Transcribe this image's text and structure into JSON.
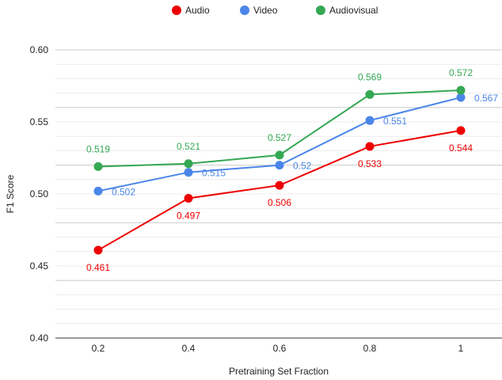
{
  "chart_data": {
    "type": "line",
    "title": "",
    "xlabel": "Pretraining Set Fraction",
    "ylabel": "F1 Score",
    "categories": [
      "0.2",
      "0.4",
      "0.6",
      "0.8",
      "1"
    ],
    "ylim": [
      0.4,
      0.6
    ],
    "yticks": [
      "0.40",
      "0.45",
      "0.50",
      "0.55",
      "0.60"
    ],
    "grid": true,
    "legend_position": "top-center",
    "series": [
      {
        "name": "Audio",
        "color": "#ee0000",
        "values": [
          0.461,
          0.497,
          0.506,
          0.533,
          0.544
        ],
        "labels": [
          "0.461",
          "0.497",
          "0.506",
          "0.533",
          "0.544"
        ]
      },
      {
        "name": "Video",
        "color": "#4a86e8",
        "values": [
          0.502,
          0.515,
          0.52,
          0.551,
          0.567
        ],
        "labels": [
          "0.502",
          "0.515",
          "0.52",
          "0.551",
          "0.567"
        ]
      },
      {
        "name": "Audiovisual",
        "color": "#34a853",
        "values": [
          0.519,
          0.521,
          0.527,
          0.569,
          0.572
        ],
        "labels": [
          "0.519",
          "0.521",
          "0.527",
          "0.569",
          "0.572"
        ]
      }
    ]
  }
}
